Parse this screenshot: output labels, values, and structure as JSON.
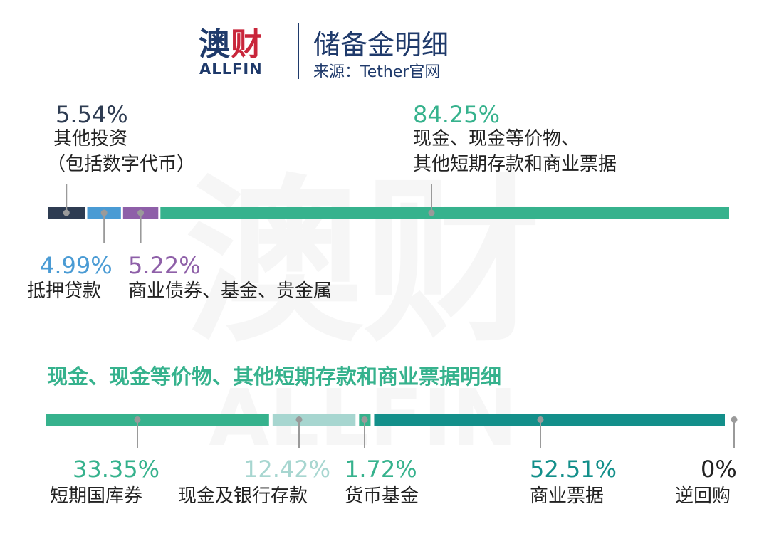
{
  "header": {
    "logo_cn": "澳财",
    "logo_en": "ALLFIN",
    "title": "储备金明细",
    "source": "来源：Tether官网"
  },
  "colors": {
    "navy": "#1f3a6b",
    "dark": "#2e3c52",
    "blue": "#4a9bd4",
    "purple": "#8e5fa8",
    "green": "#36b28d",
    "light_teal": "#a7d6d0",
    "dark_teal": "#138f8a",
    "gray": "#9a9a9a"
  },
  "chart_data": [
    {
      "type": "bar",
      "orientation": "horizontal-stacked",
      "title": "",
      "segments": [
        {
          "pct_label": "5.54%",
          "value": 5.54,
          "label_lines": [
            "其他投资",
            "（包括数字代币）"
          ],
          "color": "#2e3c52"
        },
        {
          "pct_label": "4.99%",
          "value": 4.99,
          "label_lines": [
            "抵押贷款"
          ],
          "color": "#4a9bd4"
        },
        {
          "pct_label": "5.22%",
          "value": 5.22,
          "label_lines": [
            "商业债券、基金、贵金属"
          ],
          "color": "#8e5fa8"
        },
        {
          "pct_label": "84.25%",
          "value": 84.25,
          "label_lines": [
            "现金、现金等价物、",
            "其他短期存款和商业票据"
          ],
          "color": "#36b28d"
        }
      ]
    },
    {
      "type": "bar",
      "orientation": "horizontal-stacked",
      "title": "现金、现金等价物、其他短期存款和商业票据明细",
      "segments": [
        {
          "pct_label": "33.35%",
          "value": 33.35,
          "label": "短期国库券",
          "color": "#36b28d"
        },
        {
          "pct_label": "12.42%",
          "value": 12.42,
          "label": "现金及银行存款",
          "color": "#a7d6d0"
        },
        {
          "pct_label": "1.72%",
          "value": 1.72,
          "label": "货币基金",
          "color": "#36b28d"
        },
        {
          "pct_label": "52.51%",
          "value": 52.51,
          "label": "商业票据",
          "color": "#138f8a"
        },
        {
          "pct_label": "0%",
          "value": 0,
          "label": "逆回购",
          "color": "#9a9a9a"
        }
      ]
    }
  ]
}
